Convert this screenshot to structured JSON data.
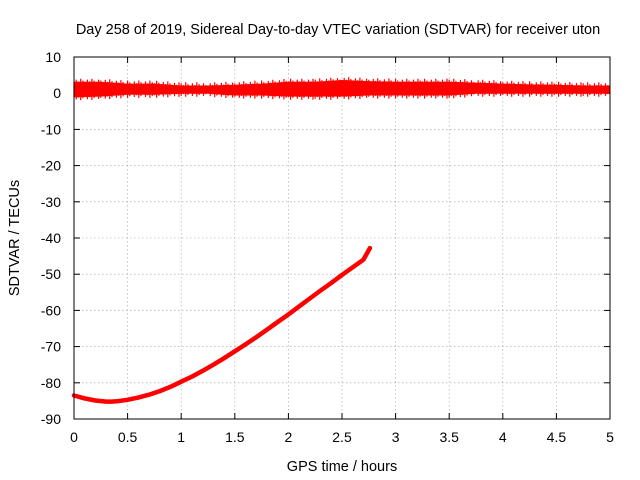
{
  "chart_data": {
    "type": "line",
    "title": "Day 258 of 2019, Sidereal Day-to-day VTEC variation (SDTVAR) for receiver uton",
    "xlabel": "GPS time / hours",
    "ylabel": "SDTVAR / TECUs",
    "xlim": [
      0,
      5
    ],
    "ylim": [
      -90,
      10
    ],
    "xticks": [
      0,
      0.5,
      1,
      1.5,
      2,
      2.5,
      3,
      3.5,
      4,
      4.5,
      5
    ],
    "xtick_labels": [
      "0",
      "0.5",
      "1",
      "1.5",
      "2",
      "2.5",
      "3",
      "3.5",
      "4",
      "4.5",
      "5"
    ],
    "yticks": [
      10,
      0,
      -10,
      -20,
      -30,
      -40,
      -50,
      -60,
      -70,
      -80,
      -90
    ],
    "ytick_labels": [
      "10",
      "0",
      "-10",
      "-20",
      "-30",
      "-40",
      "-50",
      "-60",
      "-70",
      "-80",
      "-90"
    ],
    "grid": true,
    "color": "#ff0000",
    "series": [
      {
        "name": "band-near-zero",
        "style": "band",
        "x": [
          0,
          0.25,
          0.5,
          0.75,
          1.0,
          1.25,
          1.5,
          1.75,
          2.0,
          2.25,
          2.5,
          2.75,
          3.0,
          3.25,
          3.5,
          3.75,
          4.0,
          4.25,
          4.5,
          4.75,
          5.0
        ],
        "upper": [
          3.0,
          3.0,
          2.5,
          2.5,
          2.0,
          2.0,
          2.2,
          2.5,
          3.0,
          3.0,
          3.5,
          3.2,
          3.0,
          3.0,
          3.0,
          2.8,
          2.5,
          2.3,
          2.2,
          2.0,
          2.0
        ],
        "lower": [
          -1.0,
          -0.8,
          -0.3,
          -0.3,
          0.0,
          0.0,
          -0.5,
          -0.5,
          -0.8,
          -0.8,
          -0.8,
          -0.5,
          -0.5,
          -0.5,
          -0.5,
          0.0,
          0.0,
          0.0,
          0.0,
          0.0,
          0.0
        ]
      },
      {
        "name": "satellite-track",
        "style": "line",
        "x": [
          0,
          0.1,
          0.2,
          0.3,
          0.35,
          0.4,
          0.5,
          0.6,
          0.7,
          0.8,
          0.9,
          1.0,
          1.1,
          1.2,
          1.3,
          1.4,
          1.5,
          1.6,
          1.7,
          1.8,
          1.9,
          2.0,
          2.1,
          2.2,
          2.3,
          2.4,
          2.5,
          2.6,
          2.7,
          2.76
        ],
        "y": [
          -83.5,
          -84.3,
          -84.9,
          -85.2,
          -85.2,
          -85.1,
          -84.7,
          -84.1,
          -83.3,
          -82.3,
          -81.1,
          -79.7,
          -78.3,
          -76.7,
          -75.0,
          -73.2,
          -71.3,
          -69.4,
          -67.4,
          -65.3,
          -63.2,
          -61.1,
          -58.9,
          -56.7,
          -54.5,
          -52.4,
          -50.2,
          -48.1,
          -46.0,
          -42.8
        ]
      }
    ]
  }
}
